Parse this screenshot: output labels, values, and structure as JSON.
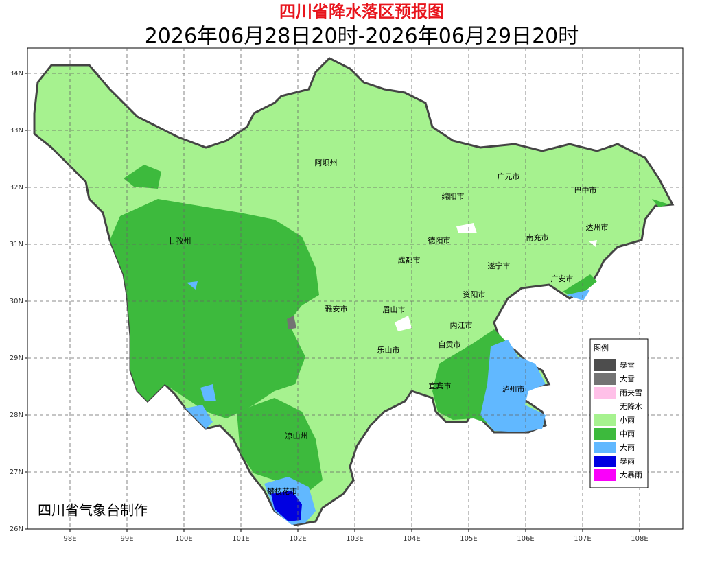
{
  "title": "四川省降水落区预报图",
  "subtitle": "2026年06月28日20时-2026年06月29日20时",
  "lat_labels": [
    "34N",
    "33N",
    "32N",
    "31N",
    "30N",
    "29N",
    "28N",
    "27N",
    "26N"
  ],
  "lon_labels": [
    "98E",
    "99E",
    "100E",
    "101E",
    "102E",
    "103E",
    "104E",
    "105E",
    "106E",
    "107E",
    "108E"
  ],
  "cities": [
    "阿坝州",
    "广元市",
    "巴中市",
    "绵阳市",
    "达州市",
    "德阳市",
    "南充市",
    "甘孜州",
    "成都市",
    "遂宁市",
    "广安市",
    "雅安市",
    "眉山市",
    "资阳市",
    "内江市",
    "乐山市",
    "自贡市",
    "宜宾市",
    "泸州市",
    "凉山州",
    "攀枝花市"
  ],
  "legend": {
    "title": "图例",
    "items": [
      {
        "label": "暴雪",
        "color": "#4d4d4d"
      },
      {
        "label": "大雪",
        "color": "#737373"
      },
      {
        "label": "雨夹雪",
        "color": "#ffc0e8"
      },
      {
        "label": "无降水",
        "color": "#ffffff"
      },
      {
        "label": "小雨",
        "color": "#a6f28f"
      },
      {
        "label": "中雨",
        "color": "#3dba3d"
      },
      {
        "label": "大雨",
        "color": "#61b8ff"
      },
      {
        "label": "暴雨",
        "color": "#0000e1"
      },
      {
        "label": "大暴雨",
        "color": "#fa00fa"
      }
    ]
  },
  "credit": "四川省气象台制作"
}
